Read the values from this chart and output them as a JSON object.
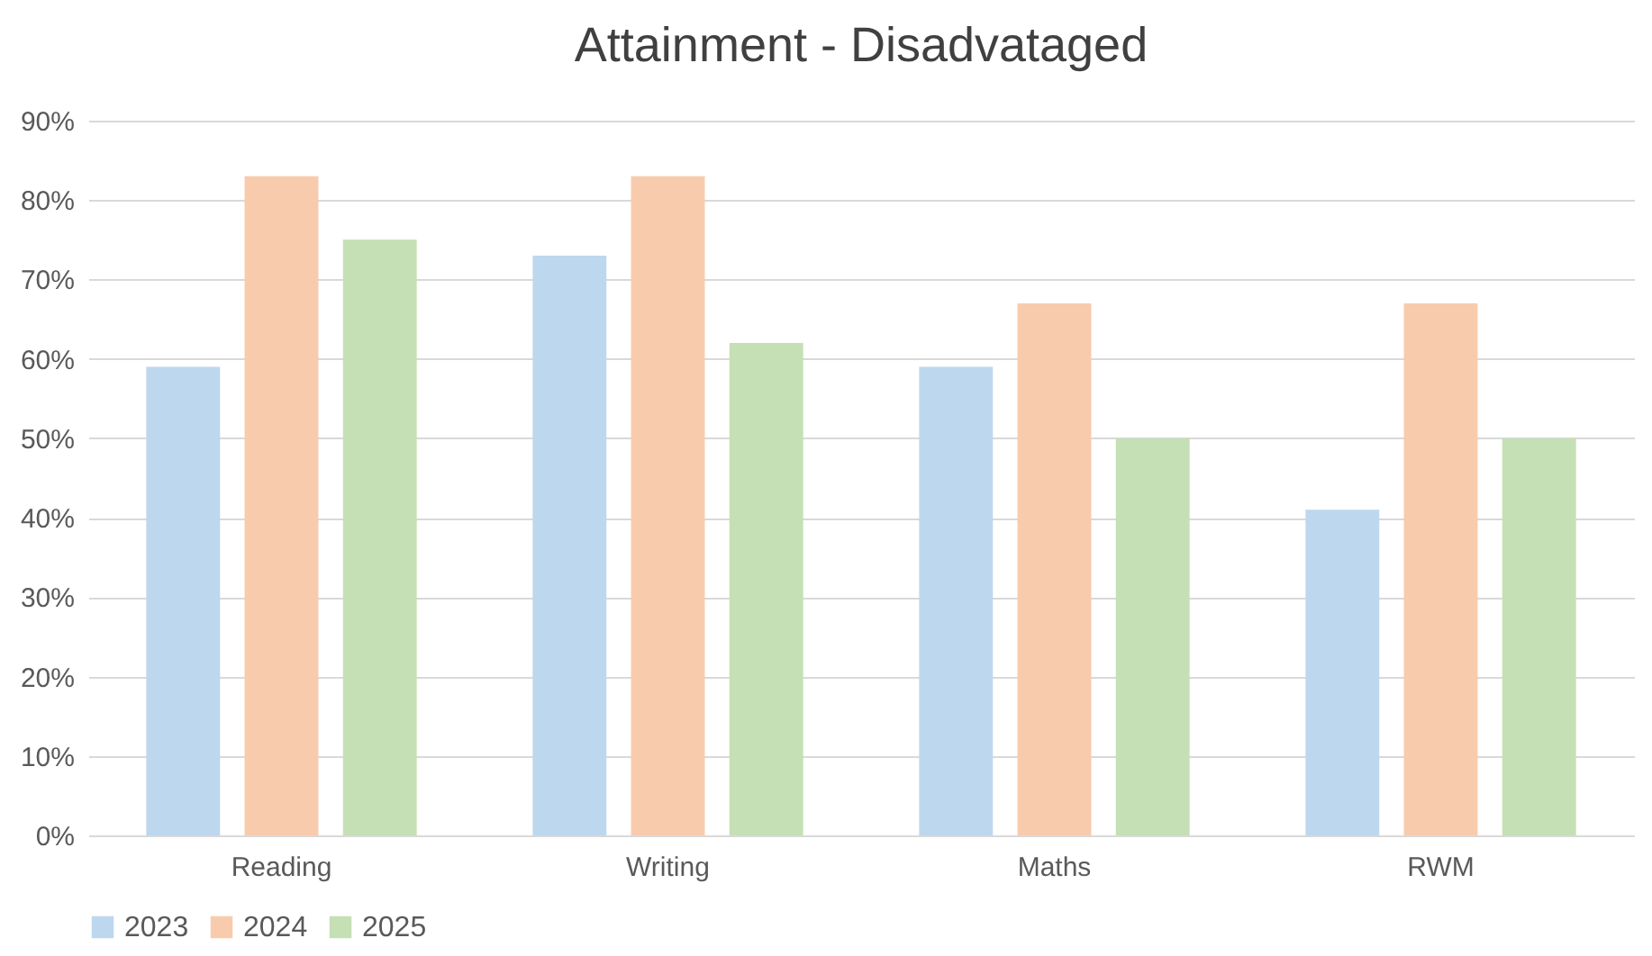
{
  "chart_data": {
    "type": "bar",
    "title": "Attainment - Disadvataged",
    "categories": [
      "Reading",
      "Writing",
      "Maths",
      "RWM"
    ],
    "series": [
      {
        "name": "2023",
        "color": "#bdd7ee",
        "values": [
          59,
          73,
          59,
          41
        ]
      },
      {
        "name": "2024",
        "color": "#f8cbad",
        "values": [
          83,
          83,
          67,
          67
        ]
      },
      {
        "name": "2025",
        "color": "#c5e0b4",
        "values": [
          75,
          62,
          50,
          50
        ]
      }
    ],
    "ylim": [
      0,
      90
    ],
    "yticks": [
      {
        "value": 0,
        "label": "0%"
      },
      {
        "value": 10,
        "label": "10%"
      },
      {
        "value": 20,
        "label": "20%"
      },
      {
        "value": 30,
        "label": "30%"
      },
      {
        "value": 40,
        "label": "40%"
      },
      {
        "value": 50,
        "label": "50%"
      },
      {
        "value": 60,
        "label": "60%"
      },
      {
        "value": 70,
        "label": "70%"
      },
      {
        "value": 80,
        "label": "80%"
      },
      {
        "value": 90,
        "label": "90%"
      }
    ],
    "grid": "y",
    "legend": "bottom"
  }
}
